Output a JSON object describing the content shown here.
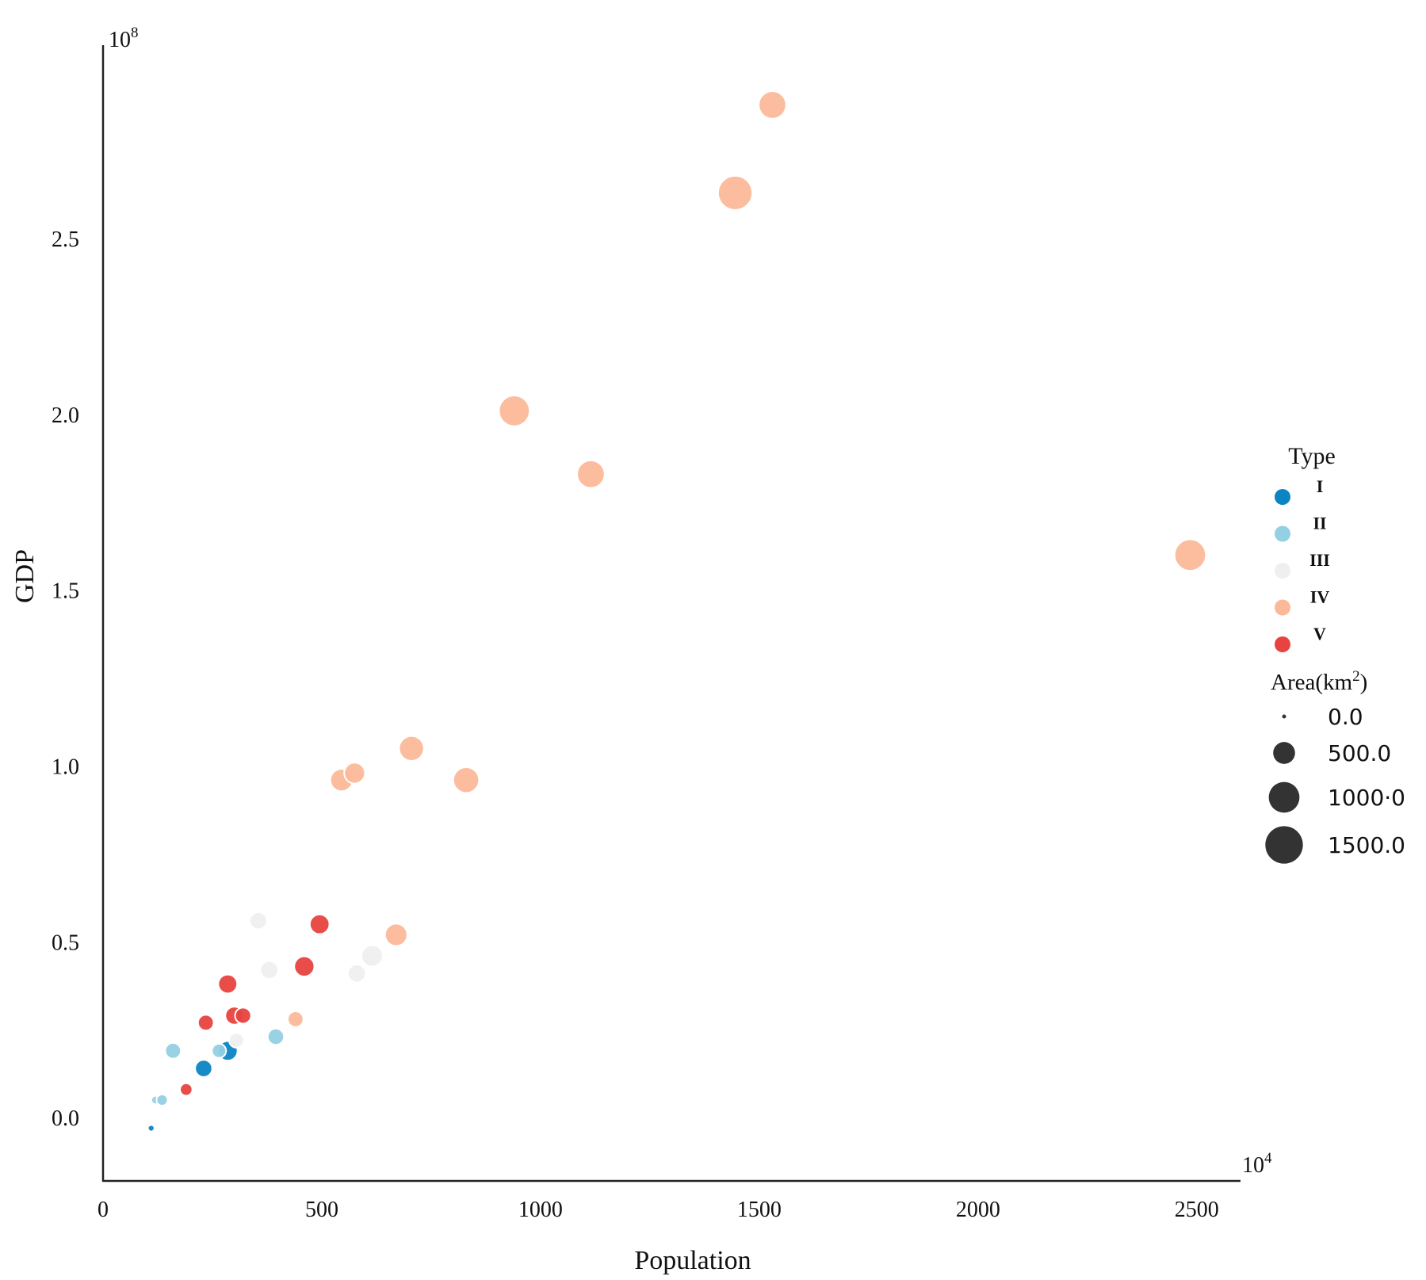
{
  "chart_data": {
    "type": "scatter",
    "xlabel": "Population",
    "ylabel": "GDP",
    "x_scale_label": "10",
    "x_scale_exp": "4",
    "y_scale_label": "10",
    "y_scale_exp": "8",
    "xlim": [
      0,
      2600
    ],
    "ylim": [
      -0.18,
      3.05
    ],
    "x_ticks": [
      0,
      500,
      1000,
      1500,
      2000,
      2500
    ],
    "x_tick_labels": [
      "0",
      "500",
      "1000",
      "1500",
      "2000",
      "2500"
    ],
    "y_ticks": [
      0.0,
      0.5,
      1.0,
      1.5,
      2.0,
      2.5
    ],
    "y_tick_labels": [
      "0.0",
      "0.5",
      "1.0",
      "1.5",
      "2.0",
      "2.5"
    ],
    "grid": false,
    "legend": {
      "placement": "right",
      "type_title": "Type",
      "types": [
        {
          "label": "I",
          "color": "#0a85c2"
        },
        {
          "label": "II",
          "color": "#94d0e4"
        },
        {
          "label": "III",
          "color": "#efefef"
        },
        {
          "label": "IV",
          "color": "#fcb99a"
        },
        {
          "label": "V",
          "color": "#e8433f"
        }
      ],
      "size_title": "Area(km",
      "size_title_sup": "2",
      "size_title_close": ")",
      "size_color": "#333333",
      "sizes": [
        {
          "label": "0.0",
          "area": 0
        },
        {
          "label": "500.0",
          "area": 500
        },
        {
          "label": "1000·0",
          "area": 1000
        },
        {
          "label": "1500.0",
          "area": 1500
        }
      ]
    },
    "series": [
      {
        "name": "I",
        "points": [
          {
            "x": 110,
            "y": -0.03,
            "area": 30
          },
          {
            "x": 230,
            "y": 0.14,
            "area": 300
          },
          {
            "x": 285,
            "y": 0.19,
            "area": 400
          }
        ]
      },
      {
        "name": "II",
        "points": [
          {
            "x": 120,
            "y": 0.05,
            "area": 60
          },
          {
            "x": 135,
            "y": 0.05,
            "area": 120
          },
          {
            "x": 160,
            "y": 0.19,
            "area": 250
          },
          {
            "x": 265,
            "y": 0.19,
            "area": 200
          },
          {
            "x": 395,
            "y": 0.23,
            "area": 270
          }
        ]
      },
      {
        "name": "III",
        "points": [
          {
            "x": 305,
            "y": 0.22,
            "area": 220
          },
          {
            "x": 355,
            "y": 0.56,
            "area": 300
          },
          {
            "x": 380,
            "y": 0.42,
            "area": 330
          },
          {
            "x": 580,
            "y": 0.41,
            "area": 330
          },
          {
            "x": 615,
            "y": 0.46,
            "area": 480
          }
        ]
      },
      {
        "name": "IV",
        "points": [
          {
            "x": 440,
            "y": 0.28,
            "area": 250
          },
          {
            "x": 545,
            "y": 0.96,
            "area": 520
          },
          {
            "x": 575,
            "y": 0.98,
            "area": 450
          },
          {
            "x": 670,
            "y": 0.52,
            "area": 520
          },
          {
            "x": 705,
            "y": 1.05,
            "area": 650
          },
          {
            "x": 830,
            "y": 0.96,
            "area": 700
          },
          {
            "x": 940,
            "y": 2.01,
            "area": 1000
          },
          {
            "x": 1115,
            "y": 1.83,
            "area": 800
          },
          {
            "x": 1445,
            "y": 2.63,
            "area": 1250
          },
          {
            "x": 1530,
            "y": 2.88,
            "area": 800
          },
          {
            "x": 2485,
            "y": 1.6,
            "area": 1050
          }
        ]
      },
      {
        "name": "V",
        "points": [
          {
            "x": 190,
            "y": 0.08,
            "area": 150
          },
          {
            "x": 235,
            "y": 0.27,
            "area": 250
          },
          {
            "x": 285,
            "y": 0.38,
            "area": 370
          },
          {
            "x": 300,
            "y": 0.29,
            "area": 330
          },
          {
            "x": 320,
            "y": 0.29,
            "area": 260
          },
          {
            "x": 460,
            "y": 0.43,
            "area": 420
          },
          {
            "x": 495,
            "y": 0.55,
            "area": 400
          }
        ]
      }
    ]
  }
}
